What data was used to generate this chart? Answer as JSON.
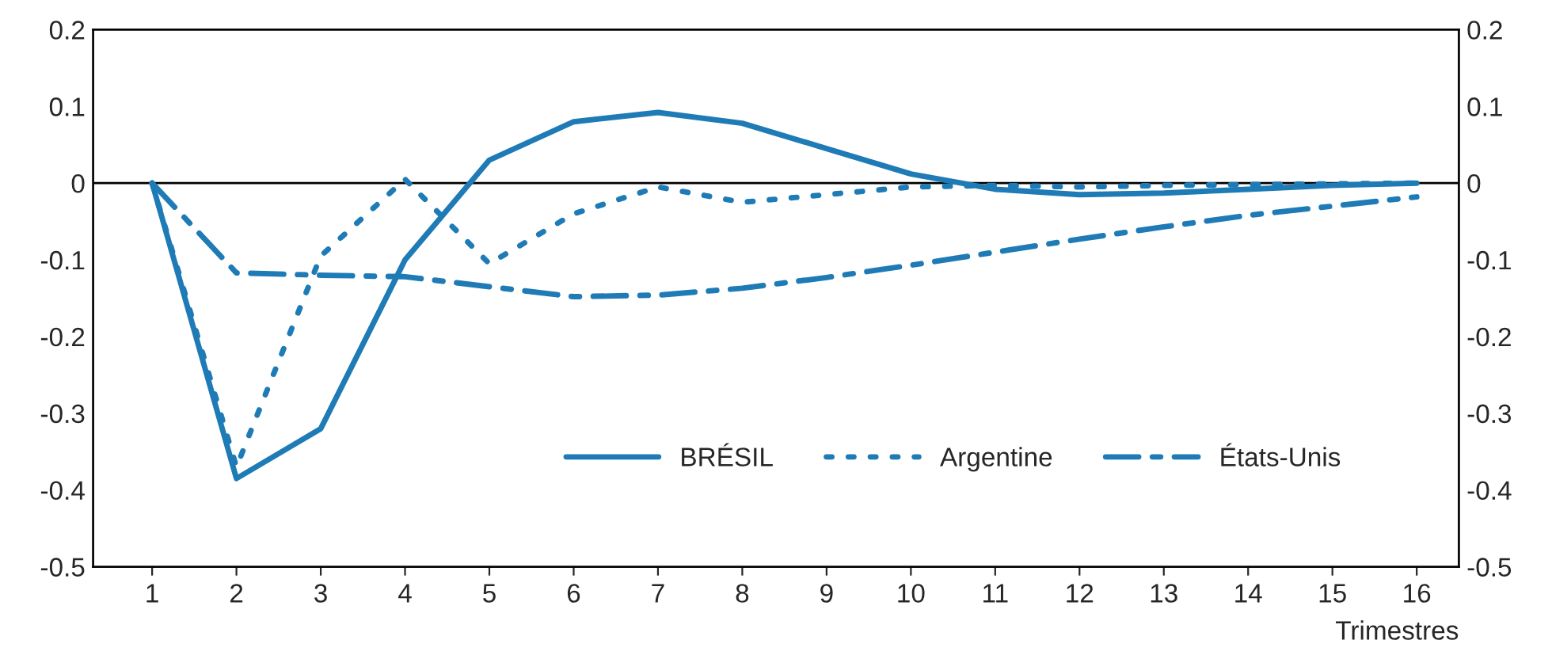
{
  "chart_data": {
    "type": "line",
    "xlabel": "Trimestres",
    "categories": [
      "1",
      "2",
      "3",
      "4",
      "5",
      "6",
      "7",
      "8",
      "9",
      "10",
      "11",
      "12",
      "13",
      "14",
      "15",
      "16"
    ],
    "series": [
      {
        "name": "BRÉSIL",
        "color": "#1f7bb6",
        "line_style": "solid",
        "values": [
          0,
          -0.385,
          -0.32,
          -0.1,
          0.03,
          0.08,
          0.092,
          0.078,
          0.045,
          0.012,
          -0.008,
          -0.015,
          -0.013,
          -0.008,
          -0.003,
          0
        ]
      },
      {
        "name": "Argentine",
        "color": "#1f7bb6",
        "line_style": "dotted",
        "values": [
          0,
          -0.37,
          -0.095,
          0.005,
          -0.105,
          -0.04,
          -0.005,
          -0.025,
          -0.015,
          -0.005,
          -0.003,
          -0.005,
          -0.003,
          -0.002,
          -0.001,
          0
        ]
      },
      {
        "name": "États-Unis",
        "color": "#1f7bb6",
        "line_style": "dashdot",
        "values": [
          0,
          -0.117,
          -0.12,
          -0.122,
          -0.135,
          -0.148,
          -0.146,
          -0.137,
          -0.123,
          -0.107,
          -0.09,
          -0.073,
          -0.057,
          -0.042,
          -0.03,
          -0.018
        ]
      }
    ],
    "ylim": [
      -0.5,
      0.2
    ],
    "yticks": [
      -0.5,
      -0.4,
      -0.3,
      -0.2,
      -0.1,
      0,
      0.1,
      0.2
    ],
    "y2lim": [
      -0.5,
      0.2
    ],
    "y2ticks": [
      -0.5,
      -0.4,
      -0.3,
      -0.2,
      -0.1,
      0,
      0.1,
      0.2
    ],
    "ref_lines": [
      {
        "axis": "y",
        "value": 0,
        "color": "#000000"
      }
    ],
    "grid": false,
    "legend": "bottom",
    "marker": "none"
  }
}
